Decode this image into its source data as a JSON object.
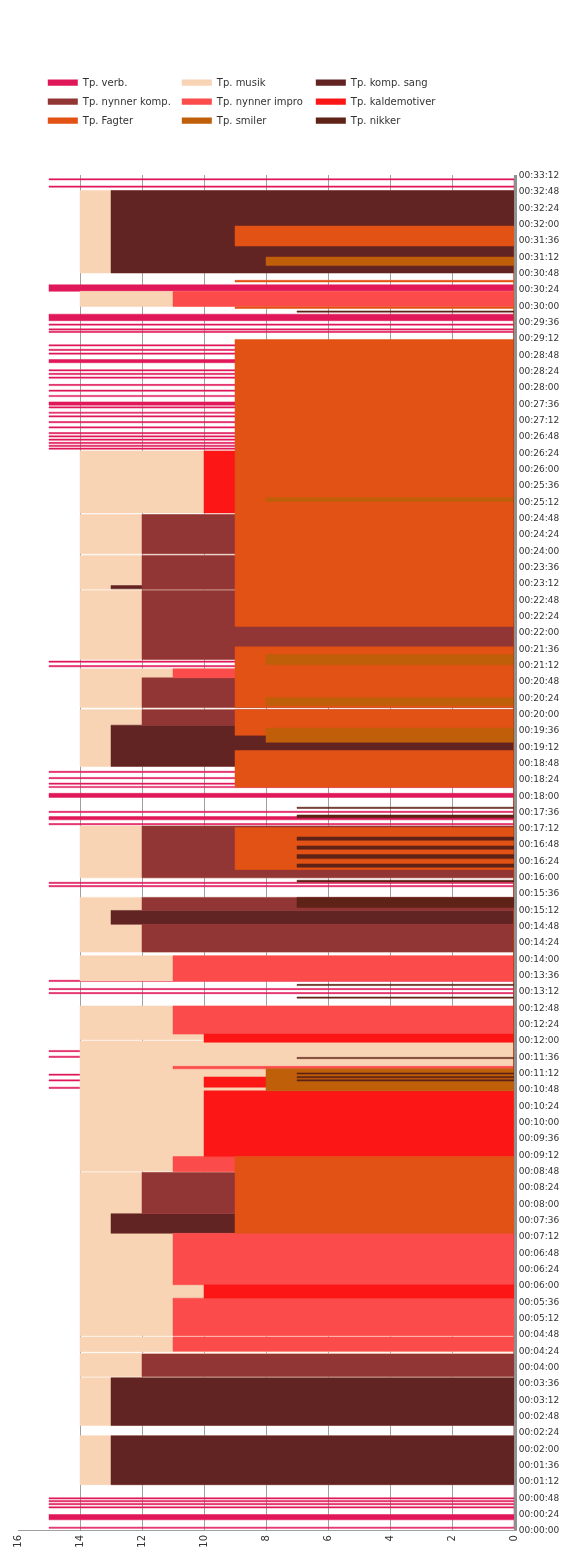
{
  "chart_data": {
    "type": "area",
    "orientation": "horizontal",
    "xlim": [
      16,
      0
    ],
    "xticks": [
      0,
      2,
      4,
      6,
      8,
      10,
      12,
      14,
      16
    ],
    "ylim": [
      0,
      33.2
    ],
    "yticks": [
      {
        "value": 0,
        "label": "00:00:00"
      },
      {
        "value": 0.4,
        "label": "00:00:24"
      },
      {
        "value": 0.8,
        "label": "00:00:48"
      },
      {
        "value": 1.2,
        "label": "00:01:12"
      },
      {
        "value": 1.6,
        "label": "00:01:36"
      },
      {
        "value": 2,
        "label": "00:02:00"
      },
      {
        "value": 2.4,
        "label": "00:02:24"
      },
      {
        "value": 2.8,
        "label": "00:02:48"
      },
      {
        "value": 3.2,
        "label": "00:03:12"
      },
      {
        "value": 3.6,
        "label": "00:03:36"
      },
      {
        "value": 4,
        "label": "00:04:00"
      },
      {
        "value": 4.4,
        "label": "00:04:24"
      },
      {
        "value": 4.8,
        "label": "00:04:48"
      },
      {
        "value": 5.2,
        "label": "00:05:12"
      },
      {
        "value": 5.6,
        "label": "00:05:36"
      },
      {
        "value": 6,
        "label": "00:06:00"
      },
      {
        "value": 6.4,
        "label": "00:06:24"
      },
      {
        "value": 6.8,
        "label": "00:06:48"
      },
      {
        "value": 7.2,
        "label": "00:07:12"
      },
      {
        "value": 7.6,
        "label": "00:07:36"
      },
      {
        "value": 8,
        "label": "00:08:00"
      },
      {
        "value": 8.4,
        "label": "00:08:24"
      },
      {
        "value": 8.8,
        "label": "00:08:48"
      },
      {
        "value": 9.2,
        "label": "00:09:12"
      },
      {
        "value": 9.6,
        "label": "00:09:36"
      },
      {
        "value": 10,
        "label": "00:10:00"
      },
      {
        "value": 10.4,
        "label": "00:10:24"
      },
      {
        "value": 10.8,
        "label": "00:10:48"
      },
      {
        "value": 11.2,
        "label": "00:11:12"
      },
      {
        "value": 11.6,
        "label": "00:11:36"
      },
      {
        "value": 12,
        "label": "00:12:00"
      },
      {
        "value": 12.4,
        "label": "00:12:24"
      },
      {
        "value": 12.8,
        "label": "00:12:48"
      },
      {
        "value": 13.2,
        "label": "00:13:12"
      },
      {
        "value": 13.6,
        "label": "00:13:36"
      },
      {
        "value": 14,
        "label": "00:14:00"
      },
      {
        "value": 14.4,
        "label": "00:14:24"
      },
      {
        "value": 14.8,
        "label": "00:14:48"
      },
      {
        "value": 15.2,
        "label": "00:15:12"
      },
      {
        "value": 15.6,
        "label": "00:15:36"
      },
      {
        "value": 16,
        "label": "00:16:00"
      },
      {
        "value": 16.4,
        "label": "00:16:24"
      },
      {
        "value": 16.8,
        "label": "00:16:48"
      },
      {
        "value": 17.2,
        "label": "00:17:12"
      },
      {
        "value": 17.6,
        "label": "00:17:36"
      },
      {
        "value": 18,
        "label": "00:18:00"
      },
      {
        "value": 18.4,
        "label": "00:18:24"
      },
      {
        "value": 18.8,
        "label": "00:18:48"
      },
      {
        "value": 19.2,
        "label": "00:19:12"
      },
      {
        "value": 19.6,
        "label": "00:19:36"
      },
      {
        "value": 20,
        "label": "00:20:00"
      },
      {
        "value": 20.4,
        "label": "00:20:24"
      },
      {
        "value": 20.8,
        "label": "00:20:48"
      },
      {
        "value": 21.2,
        "label": "00:21:12"
      },
      {
        "value": 21.6,
        "label": "00:21:36"
      },
      {
        "value": 22,
        "label": "00:22:00"
      },
      {
        "value": 22.4,
        "label": "00:22:24"
      },
      {
        "value": 22.8,
        "label": "00:22:48"
      },
      {
        "value": 23.2,
        "label": "00:23:12"
      },
      {
        "value": 23.6,
        "label": "00:23:36"
      },
      {
        "value": 24,
        "label": "00:24:00"
      },
      {
        "value": 24.4,
        "label": "00:24:24"
      },
      {
        "value": 24.8,
        "label": "00:24:48"
      },
      {
        "value": 25.2,
        "label": "00:25:12"
      },
      {
        "value": 25.6,
        "label": "00:25:36"
      },
      {
        "value": 26,
        "label": "00:26:00"
      },
      {
        "value": 26.4,
        "label": "00:26:24"
      },
      {
        "value": 26.8,
        "label": "00:26:48"
      },
      {
        "value": 27.2,
        "label": "00:27:12"
      },
      {
        "value": 27.6,
        "label": "00:27:36"
      },
      {
        "value": 28,
        "label": "00:28:00"
      },
      {
        "value": 28.4,
        "label": "00:28:24"
      },
      {
        "value": 28.8,
        "label": "00:28:48"
      },
      {
        "value": 29.2,
        "label": "00:29:12"
      },
      {
        "value": 29.6,
        "label": "00:29:36"
      },
      {
        "value": 30,
        "label": "00:30:00"
      },
      {
        "value": 30.4,
        "label": "00:30:24"
      },
      {
        "value": 30.8,
        "label": "00:30:48"
      },
      {
        "value": 31.2,
        "label": "00:31:12"
      },
      {
        "value": 31.6,
        "label": "00:31:36"
      },
      {
        "value": 32,
        "label": "00:32:00"
      },
      {
        "value": 32.4,
        "label": "00:32:24"
      },
      {
        "value": 32.8,
        "label": "00:32:48"
      },
      {
        "value": 33.2,
        "label": "00:33:12"
      }
    ],
    "grid": "x",
    "legend": "top",
    "series": [
      {
        "name": "Tp. verb.",
        "color": "#e0185a",
        "x": [
          0.04,
          0.04,
          0.07,
          0.07,
          0.25,
          0.25,
          0.38,
          0.38,
          0.54,
          0.54,
          0.57,
          0.57,
          0.62,
          0.62,
          0.65,
          0.65,
          0.69,
          0.69,
          0.72,
          0.72,
          0.76,
          0.76,
          0.79,
          0.79,
          10.82,
          10.82,
          10.85,
          10.85,
          11.0,
          11.0,
          11.03,
          11.03,
          11.14,
          11.14,
          11.17,
          11.17,
          11.58,
          11.58,
          11.61,
          11.61,
          11.72,
          11.72,
          11.75,
          11.75,
          13.14,
          13.14,
          13.17,
          13.17,
          13.24,
          13.24,
          13.27,
          13.27,
          13.44,
          13.44,
          13.47,
          13.47,
          15.76,
          15.76,
          15.79,
          15.79,
          15.84,
          15.84,
          15.87,
          15.87,
          17.28,
          17.28,
          17.31,
          17.31,
          17.4,
          17.4,
          17.48,
          17.48,
          17.58,
          17.58,
          17.61,
          17.61,
          17.95,
          17.95,
          18.05,
          18.05,
          18.19,
          18.19,
          18.22,
          18.22,
          18.27,
          18.27,
          18.3,
          18.3,
          18.41,
          18.41,
          18.44,
          18.44,
          18.56,
          18.56,
          18.59,
          18.59,
          21.15,
          21.15,
          21.18,
          21.18,
          21.26,
          21.26,
          21.29,
          21.29,
          26.48,
          26.48,
          26.51,
          26.51,
          26.55,
          26.55,
          26.58,
          26.58,
          26.62,
          26.62,
          26.65,
          26.65,
          26.7,
          26.7,
          26.73,
          26.73,
          26.78,
          26.78,
          26.81,
          26.81,
          26.86,
          26.86,
          26.89,
          26.89,
          27.0,
          27.0,
          27.03,
          27.03,
          27.13,
          27.13,
          27.16,
          27.16,
          27.27,
          27.27,
          27.3,
          27.3,
          27.36,
          27.36,
          27.39,
          27.39,
          27.49,
          27.49,
          27.52,
          27.52,
          27.56,
          27.56,
          27.64,
          27.64,
          27.77,
          27.77,
          27.8,
          27.8,
          27.9,
          27.9,
          27.93,
          27.93,
          28.04,
          28.04,
          28.07,
          28.07,
          28.22,
          28.22,
          28.25,
          28.25,
          28.31,
          28.31,
          28.34,
          28.34,
          28.4,
          28.4,
          28.43,
          28.43,
          28.6,
          28.6,
          28.68,
          28.68,
          28.81,
          28.81,
          28.84,
          28.84,
          28.9,
          28.9,
          28.93,
          28.93,
          29.01,
          29.01,
          29.04,
          29.04,
          29.34,
          29.34,
          29.37,
          29.37,
          29.4,
          29.4,
          29.43,
          29.43,
          29.52,
          29.52,
          29.55,
          29.55,
          29.63,
          29.63,
          29.79,
          29.79,
          30.35,
          30.35,
          30.51,
          30.51,
          32.9,
          32.9,
          32.93,
          32.93,
          33.08,
          33.08,
          33.11,
          33.11
        ],
        "values": [
          0,
          15,
          15,
          0,
          0,
          15,
          15,
          0,
          0,
          15,
          15,
          0,
          0,
          15,
          15,
          0,
          0,
          15,
          15,
          0,
          0,
          15,
          15,
          0,
          0,
          15,
          15,
          0,
          0,
          15,
          15,
          0,
          0,
          15,
          15,
          0,
          0,
          15,
          15,
          0,
          0,
          15,
          15,
          0,
          0,
          15,
          15,
          0,
          0,
          15,
          15,
          0,
          0,
          15,
          15,
          0,
          0,
          15,
          15,
          0,
          0,
          15,
          15,
          0,
          0,
          15,
          15,
          0,
          0,
          15,
          15,
          0,
          0,
          15,
          15,
          0,
          0,
          15,
          15,
          0,
          0,
          15,
          15,
          0,
          0,
          15,
          15,
          0,
          0,
          15,
          15,
          0,
          0,
          15,
          15,
          0,
          0,
          15,
          15,
          0,
          0,
          15,
          15,
          0,
          0,
          15,
          15,
          0,
          0,
          15,
          15,
          0,
          0,
          15,
          15,
          0,
          0,
          15,
          15,
          0,
          0,
          15,
          15,
          0,
          0,
          15,
          15,
          0,
          0,
          15,
          15,
          0,
          0,
          15,
          15,
          0,
          0,
          15,
          15,
          0,
          0,
          15,
          15,
          0,
          0,
          15,
          15,
          0,
          0,
          15,
          15,
          0,
          0,
          15,
          15,
          0,
          0,
          15,
          15,
          0,
          0,
          15,
          15,
          0,
          0,
          15,
          15,
          0,
          0,
          15,
          15,
          0,
          0,
          15,
          15,
          0,
          0,
          15,
          15,
          0,
          0,
          15,
          15,
          0,
          0,
          15,
          15,
          0,
          0,
          15,
          15,
          0,
          0,
          15,
          15,
          0,
          0,
          15,
          15,
          0,
          0,
          15,
          15,
          0,
          0,
          15,
          15,
          0,
          0,
          15,
          15,
          0,
          0,
          15,
          15,
          0,
          0,
          15,
          15,
          0
        ]
      },
      {
        "name": "Tp. musik",
        "color": "#f8d3b4",
        "x": [
          1.11,
          1.11,
          2.31,
          2.31,
          2.56,
          2.56,
          3.73,
          3.73,
          3.76,
          3.76,
          4.33,
          4.33,
          4.37,
          4.37,
          4.73,
          4.73,
          4.76,
          4.76,
          8.76,
          8.76,
          8.79,
          8.79,
          11.98,
          11.98,
          12.01,
          12.01,
          12.84,
          12.84,
          13.45,
          13.45,
          14.07,
          14.07,
          14.16,
          14.16,
          15.5,
          15.5,
          15.98,
          15.98,
          17.25,
          17.25,
          18.71,
          18.71,
          20.1,
          20.1,
          20.15,
          20.15,
          21.1,
          21.1,
          21.33,
          21.33,
          23.02,
          23.02,
          23.05,
          23.05,
          23.88,
          23.88,
          23.92,
          23.92,
          24.88,
          24.88,
          24.92,
          24.92,
          26.44,
          26.44,
          29.98,
          29.98,
          30.35,
          30.35,
          30.8,
          30.8,
          32.82,
          32.82
        ],
        "values": [
          0,
          14,
          14,
          0,
          0,
          14,
          14,
          0,
          0,
          14,
          14,
          0,
          0,
          14,
          14,
          0,
          0,
          14,
          14,
          0,
          0,
          14,
          14,
          0,
          0,
          14,
          14,
          0,
          0,
          14,
          14,
          0,
          0,
          14,
          14,
          0,
          0,
          14,
          14,
          0,
          0,
          14,
          14,
          0,
          0,
          14,
          14,
          0,
          0,
          14,
          14,
          0,
          0,
          14,
          14,
          0,
          0,
          14,
          14,
          0,
          0,
          14,
          14,
          0,
          0,
          14,
          14,
          0,
          0,
          14,
          14,
          0
        ]
      },
      {
        "name": "Tp. komp. sang",
        "color": "#622323",
        "x": [
          1.11,
          1.11,
          2.31,
          2.31,
          2.56,
          2.56,
          3.73,
          3.73,
          7.27,
          7.27,
          7.75,
          7.75,
          14.84,
          14.84,
          15.18,
          15.18,
          18.71,
          18.71,
          19.72,
          19.72,
          23.06,
          23.06,
          23.14,
          23.14,
          30.8,
          30.8,
          32.82,
          32.82
        ],
        "values": [
          0,
          13,
          13,
          0,
          0,
          13,
          13,
          0,
          0,
          13,
          13,
          0,
          0,
          13,
          13,
          0,
          0,
          13,
          13,
          0,
          0,
          13,
          13,
          0,
          0,
          13,
          13,
          0
        ]
      },
      {
        "name": "Tp. nynner komp.",
        "color": "#923535",
        "x": [
          3.76,
          3.76,
          4.31,
          4.31,
          7.75,
          7.75,
          8.76,
          8.76,
          14.16,
          14.16,
          14.84,
          14.84,
          15.18,
          15.18,
          15.5,
          15.5,
          15.98,
          15.98,
          17.25,
          17.25,
          19.72,
          19.72,
          20.1,
          20.1,
          20.15,
          20.15,
          20.88,
          20.88,
          21.33,
          21.33,
          23.02,
          23.02,
          23.05,
          23.05,
          23.88,
          23.88,
          23.92,
          23.92,
          24.88,
          24.88
        ],
        "values": [
          0,
          12,
          12,
          0,
          0,
          12,
          12,
          0,
          0,
          12,
          12,
          0,
          0,
          12,
          12,
          0,
          0,
          12,
          12,
          0,
          0,
          12,
          12,
          0,
          0,
          12,
          12,
          0,
          0,
          12,
          12,
          0,
          0,
          12,
          12,
          0,
          0,
          12,
          12,
          0
        ]
      },
      {
        "name": "Tp. nynner impro",
        "color": "#fc4b4b",
        "x": [
          4.38,
          4.38,
          4.73,
          4.73,
          4.76,
          4.76,
          5.68,
          5.68,
          6.01,
          6.01,
          7.27,
          7.27,
          8.78,
          8.78,
          9.15,
          9.15,
          11.3,
          11.3,
          11.36,
          11.36,
          12.15,
          12.15,
          12.84,
          12.84,
          13.45,
          13.45,
          14.07,
          14.07,
          20.88,
          20.88,
          21.1,
          21.1,
          29.98,
          29.98,
          30.35,
          30.35
        ],
        "values": [
          0,
          11,
          11,
          0,
          0,
          11,
          11,
          0,
          0,
          11,
          11,
          0,
          0,
          11,
          11,
          0,
          0,
          11,
          11,
          0,
          0,
          11,
          11,
          0,
          0,
          11,
          11,
          0,
          0,
          11,
          11,
          0,
          0,
          11,
          11,
          0
        ]
      },
      {
        "name": "Tp. kaldemotiver",
        "color": "#fc1616",
        "x": [
          5.68,
          5.68,
          6.01,
          6.01,
          9.15,
          9.15,
          10.76,
          10.76,
          10.85,
          10.85,
          11.1,
          11.1,
          11.95,
          11.95,
          12.15,
          12.15,
          24.92,
          24.92,
          26.44,
          26.44
        ],
        "values": [
          0,
          10,
          10,
          0,
          0,
          10,
          10,
          0,
          0,
          10,
          10,
          0,
          0,
          10,
          10,
          0,
          0,
          10,
          10,
          0
        ]
      },
      {
        "name": "Tp. Fagter",
        "color": "#e25214",
        "x": [
          7.27,
          7.27,
          9.15,
          9.15,
          16.18,
          16.18,
          17.21,
          17.21,
          18.2,
          18.2,
          19.1,
          19.1,
          19.47,
          19.47,
          20.1,
          20.1,
          20.15,
          20.15,
          21.64,
          21.64,
          22.14,
          22.14,
          29.17,
          29.17,
          29.93,
          29.93,
          29.97,
          29.97,
          30.58,
          30.58,
          30.62,
          30.62,
          31.46,
          31.46,
          31.95,
          31.95
        ],
        "values": [
          0,
          9,
          9,
          0,
          0,
          9,
          9,
          0,
          0,
          9,
          9,
          0,
          0,
          9,
          9,
          0,
          0,
          9,
          9,
          0,
          0,
          9,
          9,
          0,
          0,
          9,
          9,
          0,
          0,
          9,
          9,
          0,
          0,
          9,
          9,
          0
        ]
      },
      {
        "name": "Tp. smiler",
        "color": "#c05f0a",
        "x": [
          10.76,
          10.76,
          11.3,
          11.3,
          19.3,
          19.3,
          19.65,
          19.65,
          20.2,
          20.2,
          20.4,
          20.4,
          21.2,
          21.2,
          21.45,
          21.45,
          25.2,
          25.2,
          25.3,
          25.3,
          30.98,
          30.98,
          31.19,
          31.19
        ],
        "values": [
          0,
          8,
          8,
          0,
          0,
          8,
          8,
          0,
          0,
          8,
          8,
          0,
          0,
          8,
          8,
          0,
          0,
          8,
          8,
          0,
          0,
          8,
          8,
          0
        ]
      },
      {
        "name": "Tp. nikker",
        "color": "#5e2216",
        "x": [
          11.0,
          11.0,
          11.03,
          11.03,
          11.08,
          11.08,
          11.11,
          11.11,
          11.17,
          11.17,
          11.2,
          11.2,
          11.55,
          11.55,
          11.58,
          11.58,
          13.03,
          13.03,
          13.06,
          13.06,
          13.34,
          13.34,
          13.37,
          13.37,
          15.25,
          15.25,
          15.5,
          15.5,
          15.88,
          15.88,
          15.92,
          15.92,
          16.24,
          16.24,
          16.32,
          16.32,
          16.45,
          16.45,
          16.55,
          16.55,
          16.68,
          16.68,
          16.76,
          16.76,
          16.9,
          16.9,
          16.98,
          16.98,
          17.45,
          17.45,
          17.52,
          17.52,
          17.68,
          17.68,
          17.71,
          17.71,
          29.84,
          29.84,
          29.87,
          29.87
        ],
        "values": [
          0,
          7,
          7,
          0,
          0,
          7,
          7,
          0,
          0,
          7,
          7,
          0,
          0,
          7,
          7,
          0,
          0,
          7,
          7,
          0,
          0,
          7,
          7,
          0,
          0,
          7,
          7,
          0,
          0,
          7,
          7,
          0,
          0,
          7,
          7,
          0,
          0,
          7,
          7,
          0,
          0,
          7,
          7,
          0,
          0,
          7,
          7,
          0,
          0,
          7,
          7,
          0,
          0,
          7,
          7,
          0,
          0,
          7,
          7,
          0
        ]
      }
    ]
  }
}
